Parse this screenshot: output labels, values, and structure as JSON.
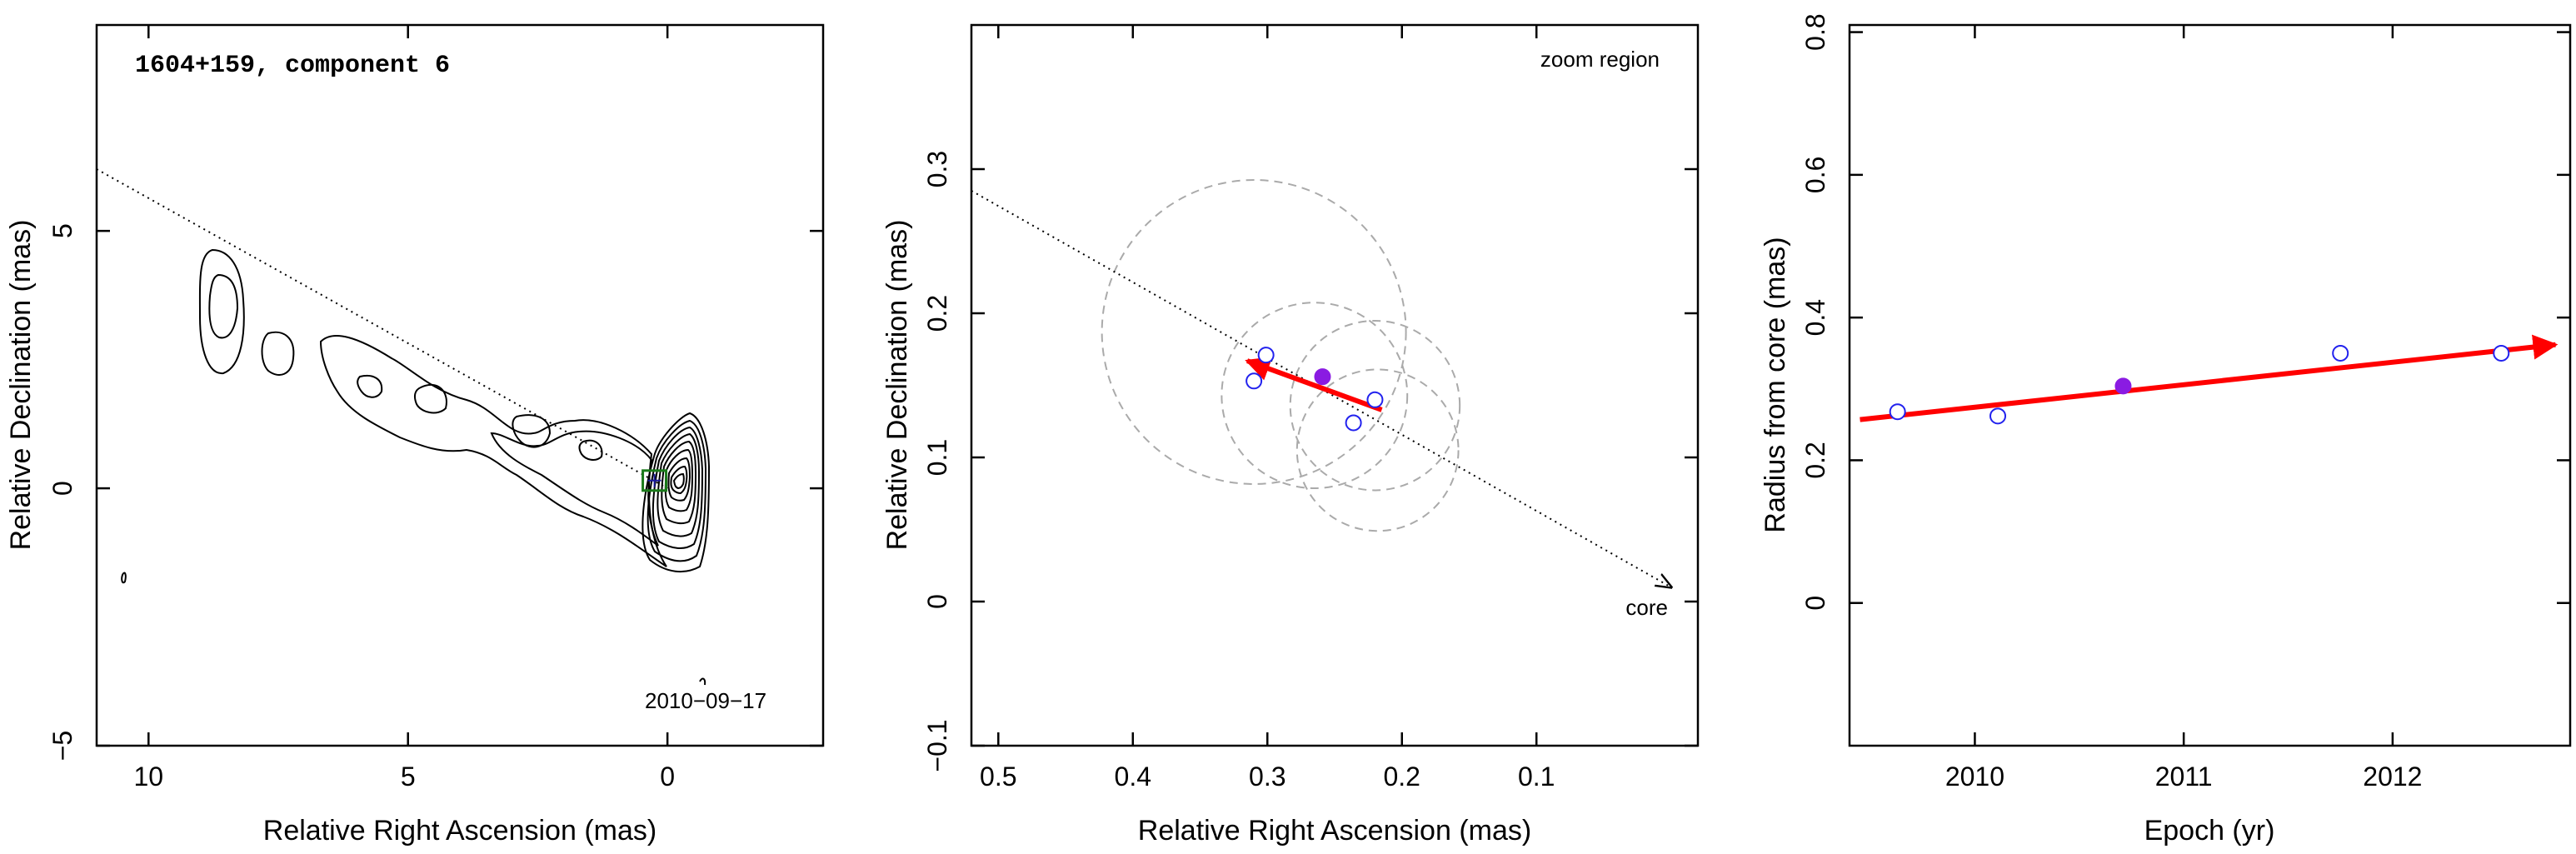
{
  "chart_data": [
    {
      "type": "contour",
      "title": "1604+159, component 6",
      "date_label": "2010−09−17",
      "xlabel": "Relative Right Ascension (mas)",
      "ylabel": "Relative Declination (mas)",
      "xlim": [
        11,
        -3
      ],
      "ylim": [
        -5,
        9
      ],
      "xticks": [
        10,
        5,
        0
      ],
      "xtick_labels": [
        "10",
        "5",
        "0"
      ],
      "yticks": [
        -5,
        0,
        5
      ],
      "ytick_labels": [
        "−5",
        "0",
        "5"
      ],
      "jet_axis": {
        "x1": 11,
        "y1": 6.2,
        "x2": 0,
        "y2": 0
      },
      "component": {
        "x": 0.25,
        "y": 0.15
      }
    },
    {
      "type": "scatter",
      "annotation_top": "zoom region",
      "annotation_core": "core",
      "xlabel": "Relative Right Ascension (mas)",
      "ylabel": "Relative Declination (mas)",
      "xlim": [
        0.52,
        -0.02
      ],
      "ylim": [
        -0.1,
        0.4
      ],
      "xticks": [
        0.5,
        0.4,
        0.3,
        0.2,
        0.1
      ],
      "xtick_labels": [
        "0.5",
        "0.4",
        "0.3",
        "0.2",
        "0.1"
      ],
      "yticks": [
        -0.1,
        0,
        0.1,
        0.2,
        0.3
      ],
      "ytick_labels": [
        "−0.1",
        "0",
        "0.1",
        "0.2",
        "0.3"
      ],
      "points_open": [
        {
          "x": 0.31,
          "y": 0.153
        },
        {
          "x": 0.301,
          "y": 0.171
        },
        {
          "x": 0.236,
          "y": 0.124
        },
        {
          "x": 0.22,
          "y": 0.14
        }
      ],
      "point_filled": {
        "x": 0.259,
        "y": 0.156
      },
      "circles": [
        {
          "x": 0.31,
          "y": 0.187,
          "r": 0.113
        },
        {
          "x": 0.265,
          "y": 0.143,
          "r": 0.069
        },
        {
          "x": 0.22,
          "y": 0.136,
          "r": 0.063
        },
        {
          "x": 0.218,
          "y": 0.105,
          "r": 0.06
        }
      ],
      "motion_vector": {
        "x1": 0.215,
        "y1": 0.133,
        "x2": 0.315,
        "y2": 0.167
      },
      "jet_axis": {
        "x1": 0.52,
        "y1": 0.285,
        "x2": 0.0,
        "y2": 0.01
      }
    },
    {
      "type": "scatter",
      "xlabel": "Epoch (yr)",
      "ylabel": "Radius from core (mas)",
      "xlim": [
        2009.4,
        2012.85
      ],
      "ylim": [
        -0.2,
        0.81
      ],
      "xticks": [
        2010,
        2011,
        2012
      ],
      "xtick_labels": [
        "2010",
        "2011",
        "2012"
      ],
      "yticks": [
        0,
        0.2,
        0.4,
        0.6,
        0.8
      ],
      "ytick_labels": [
        "0",
        "0.2",
        "0.4",
        "0.6",
        "0.8"
      ],
      "points_open": [
        {
          "x": 2009.63,
          "y": 0.268
        },
        {
          "x": 2010.11,
          "y": 0.262
        },
        {
          "x": 2011.75,
          "y": 0.35
        },
        {
          "x": 2012.52,
          "y": 0.35
        }
      ],
      "point_filled": {
        "x": 2010.71,
        "y": 0.304
      },
      "fit_line": {
        "x1": 2009.45,
        "y1": 0.257,
        "x2": 2012.78,
        "y2": 0.362
      }
    }
  ]
}
